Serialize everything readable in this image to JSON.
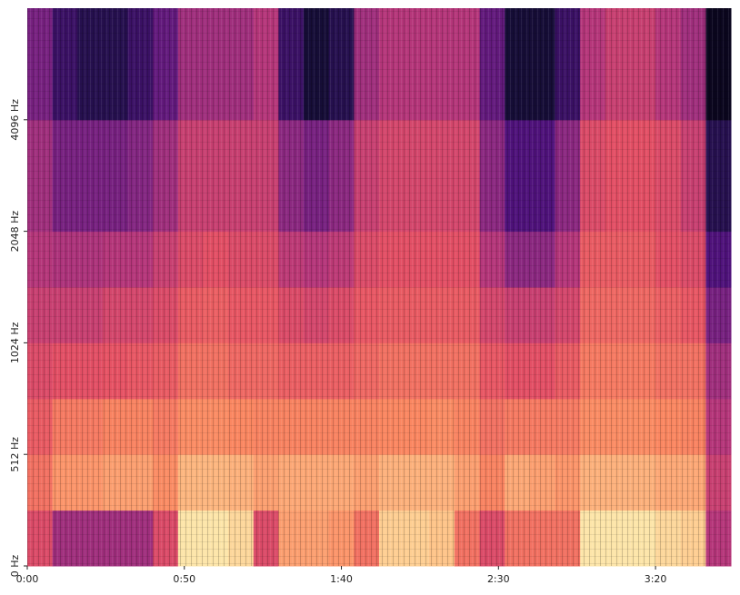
{
  "chart_data": {
    "type": "heatmap",
    "colormap": "magma",
    "zlim": [
      0,
      100
    ],
    "yscale": "symlog",
    "linthresh": 512,
    "xlim": [
      0,
      224
    ],
    "ylim": [
      0,
      8192
    ],
    "xticks": [
      {
        "value": 0,
        "label": "0:00"
      },
      {
        "value": 50,
        "label": "0:50"
      },
      {
        "value": 100,
        "label": "1:40"
      },
      {
        "value": 150,
        "label": "2:30"
      },
      {
        "value": 200,
        "label": "3:20"
      }
    ],
    "yticks": [
      {
        "value": 0,
        "label": "0 Hz"
      },
      {
        "value": 512,
        "label": "512 Hz"
      },
      {
        "value": 1024,
        "label": "1024 Hz"
      },
      {
        "value": 2048,
        "label": "2048 Hz"
      },
      {
        "value": 4096,
        "label": "4096 Hz"
      }
    ],
    "x_bins": [
      0,
      8,
      16,
      24,
      32,
      40,
      48,
      56,
      64,
      72,
      80,
      88,
      96,
      104,
      112,
      120,
      128,
      136,
      144,
      152,
      160,
      168,
      176,
      184,
      192,
      200,
      208,
      216,
      224
    ],
    "y_bins": [
      0,
      256,
      512,
      724,
      1024,
      1448,
      2048,
      4096,
      8192
    ],
    "z": [
      [
        60,
        45,
        45,
        45,
        45,
        60,
        95,
        95,
        92,
        60,
        80,
        80,
        78,
        70,
        90,
        90,
        88,
        70,
        60,
        70,
        70,
        70,
        95,
        95,
        95,
        92,
        90,
        50
      ],
      [
        70,
        78,
        78,
        80,
        80,
        76,
        85,
        85,
        84,
        80,
        82,
        82,
        82,
        80,
        84,
        84,
        84,
        80,
        74,
        82,
        80,
        78,
        84,
        84,
        84,
        82,
        82,
        55
      ],
      [
        65,
        72,
        72,
        74,
        74,
        72,
        76,
        76,
        75,
        74,
        74,
        74,
        74,
        74,
        75,
        75,
        76,
        74,
        70,
        72,
        72,
        72,
        76,
        76,
        76,
        75,
        74,
        50
      ],
      [
        60,
        62,
        62,
        63,
        64,
        65,
        70,
        70,
        68,
        68,
        66,
        66,
        66,
        68,
        70,
        70,
        70,
        70,
        64,
        62,
        62,
        65,
        72,
        72,
        72,
        70,
        70,
        45
      ],
      [
        55,
        55,
        55,
        58,
        58,
        60,
        65,
        66,
        64,
        64,
        60,
        58,
        60,
        64,
        65,
        65,
        65,
        65,
        58,
        55,
        55,
        58,
        68,
        68,
        68,
        66,
        64,
        35
      ],
      [
        50,
        48,
        48,
        50,
        50,
        55,
        60,
        62,
        60,
        60,
        52,
        50,
        52,
        60,
        62,
        62,
        62,
        62,
        50,
        40,
        40,
        50,
        65,
        65,
        65,
        62,
        60,
        25
      ],
      [
        45,
        35,
        35,
        35,
        38,
        45,
        55,
        55,
        55,
        55,
        40,
        35,
        40,
        55,
        58,
        58,
        58,
        58,
        40,
        25,
        25,
        40,
        60,
        62,
        62,
        60,
        55,
        15
      ],
      [
        35,
        20,
        15,
        15,
        20,
        30,
        45,
        45,
        45,
        50,
        20,
        10,
        15,
        45,
        50,
        50,
        50,
        50,
        30,
        10,
        10,
        20,
        50,
        55,
        55,
        50,
        45,
        5
      ]
    ]
  }
}
